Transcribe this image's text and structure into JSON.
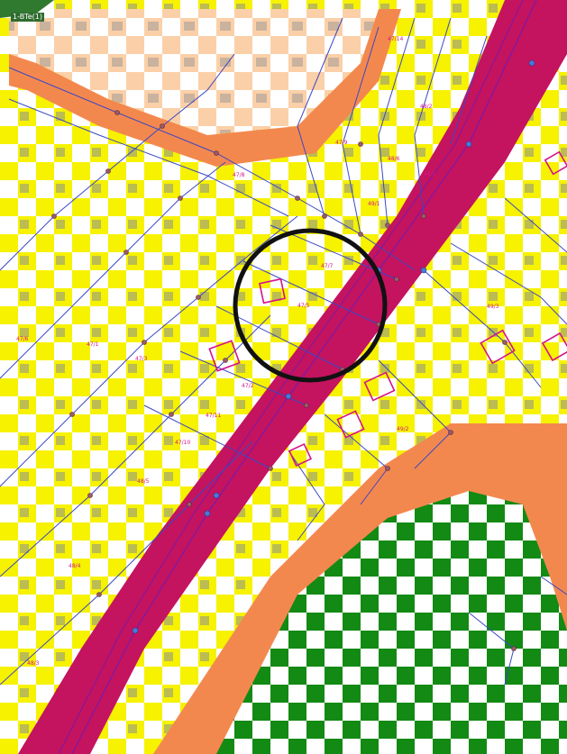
{
  "map": {
    "corner_label": "1-BTe(1)",
    "highlight": "circle",
    "legend_colors": {
      "residential_yellow": "#f6f200",
      "checker_white": "#ffffff",
      "checker_gray": "#8b8f93",
      "road_magenta": "#c4135f",
      "buffer_orange": "#f3884e",
      "green_area": "#138a13",
      "parcel_line": "#3b48c4",
      "parcel_label": "#d4148c"
    },
    "parcel_labels": [
      {
        "id": "p1",
        "text": "47/14"
      },
      {
        "id": "p2",
        "text": "47/9"
      },
      {
        "id": "p3",
        "text": "47/7"
      },
      {
        "id": "p4",
        "text": "47/5"
      },
      {
        "id": "p5",
        "text": "47/8"
      },
      {
        "id": "p6",
        "text": "47/6"
      },
      {
        "id": "p7",
        "text": "47/1"
      },
      {
        "id": "p8",
        "text": "47/3"
      },
      {
        "id": "p9",
        "text": "47/2"
      },
      {
        "id": "p10",
        "text": "47/11"
      },
      {
        "id": "p11",
        "text": "47/10"
      },
      {
        "id": "p12",
        "text": "48/5"
      },
      {
        "id": "p13",
        "text": "48/4"
      },
      {
        "id": "p14",
        "text": "48/3"
      },
      {
        "id": "p15",
        "text": "48/2"
      },
      {
        "id": "p16",
        "text": "48/1"
      },
      {
        "id": "p17",
        "text": "48/6"
      },
      {
        "id": "p18",
        "text": "49/1"
      },
      {
        "id": "p19",
        "text": "49/2"
      },
      {
        "id": "p20",
        "text": "49/3"
      }
    ]
  }
}
